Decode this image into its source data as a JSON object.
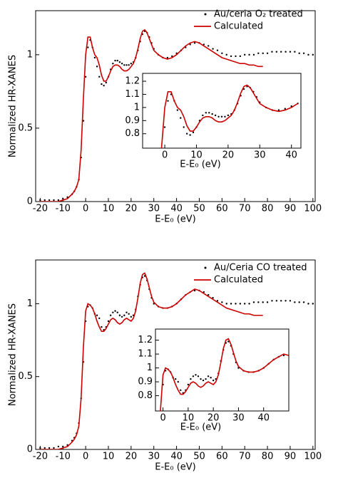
{
  "chart_data": [
    {
      "type": "line",
      "xlabel": "E-E₀ (eV)",
      "ylabel": "Normalized HR-XANES",
      "x": [
        -20,
        -18,
        -16,
        -14,
        -12,
        -10,
        -8,
        -6,
        -5,
        -4,
        -3,
        -2,
        -1,
        0,
        1,
        2,
        3,
        4,
        5,
        6,
        7,
        8,
        9,
        10,
        11,
        12,
        13,
        14,
        15,
        16,
        17,
        18,
        19,
        20,
        21,
        22,
        23,
        24,
        25,
        26,
        27,
        28,
        29,
        30,
        32,
        34,
        36,
        38,
        40,
        42,
        44,
        46,
        48,
        50,
        52,
        54,
        56,
        58,
        60,
        62,
        64,
        66,
        68,
        70,
        72,
        74,
        76,
        78,
        80,
        82,
        84,
        86,
        88,
        90,
        92,
        94,
        96,
        98,
        100
      ],
      "series": [
        {
          "name": "Au/ceria O₂ treated",
          "color": "#000000",
          "marker": "dot",
          "values": [
            0.01,
            0.01,
            0.01,
            0.01,
            0.01,
            0.02,
            0.03,
            0.05,
            0.07,
            0.1,
            0.15,
            0.3,
            0.55,
            0.85,
            1.05,
            1.1,
            1.05,
            0.98,
            0.92,
            0.85,
            0.8,
            0.79,
            0.81,
            0.85,
            0.9,
            0.94,
            0.96,
            0.96,
            0.95,
            0.94,
            0.93,
            0.93,
            0.93,
            0.94,
            0.95,
            0.98,
            1.03,
            1.09,
            1.14,
            1.16,
            1.15,
            1.12,
            1.08,
            1.04,
            1.0,
            0.98,
            0.98,
            0.99,
            1.01,
            1.03,
            1.05,
            1.07,
            1.08,
            1.08,
            1.07,
            1.06,
            1.04,
            1.03,
            1.01,
            1.0,
            0.99,
            0.99,
            0.99,
            1.0,
            1.0,
            1.0,
            1.01,
            1.01,
            1.01,
            1.02,
            1.02,
            1.02,
            1.02,
            1.02,
            1.02,
            1.01,
            1.01,
            1.0,
            1.0
          ]
        },
        {
          "name": "Calculated",
          "color": "#cc0000",
          "marker": "line",
          "values": [
            0,
            0,
            0,
            0,
            0,
            0.01,
            0.02,
            0.05,
            0.07,
            0.1,
            0.15,
            0.35,
            0.7,
            1.0,
            1.12,
            1.12,
            1.05,
            1.0,
            0.98,
            0.93,
            0.86,
            0.82,
            0.82,
            0.85,
            0.89,
            0.92,
            0.93,
            0.93,
            0.92,
            0.9,
            0.89,
            0.89,
            0.9,
            0.92,
            0.94,
            0.98,
            1.04,
            1.11,
            1.16,
            1.17,
            1.15,
            1.11,
            1.07,
            1.03,
            1.0,
            0.98,
            0.97,
            0.98,
            1.0,
            1.03,
            1.06,
            1.08,
            1.09,
            1.08,
            1.06,
            1.04,
            1.02,
            1.0,
            0.98,
            0.97,
            0.96,
            0.95,
            0.94,
            0.94,
            0.93,
            0.93,
            0.92,
            0.92,
            null,
            null,
            null,
            null,
            null,
            null,
            null,
            null,
            null,
            null,
            null
          ]
        }
      ],
      "xlim": [
        -22,
        101
      ],
      "ylim": [
        0,
        1.3
      ],
      "xticks": [
        -20,
        -10,
        0,
        10,
        20,
        30,
        40,
        50,
        60,
        70,
        80,
        90,
        100
      ],
      "yticks": [
        0,
        0.5,
        1
      ],
      "legend": "upper right",
      "inset": {
        "xlabel": "E-E₀ (eV)",
        "xlim": [
          -7,
          43
        ],
        "ylim": [
          0.69,
          1.26
        ],
        "xticks": [
          0,
          10,
          20,
          30,
          40
        ],
        "yticks": [
          0.8,
          0.9,
          1,
          1.1,
          1.2
        ]
      }
    },
    {
      "type": "line",
      "xlabel": "E-E₀ (eV)",
      "ylabel": "Normalized HR-XANES",
      "x": [
        -20,
        -18,
        -16,
        -14,
        -12,
        -10,
        -8,
        -6,
        -5,
        -4,
        -3,
        -2,
        -1,
        0,
        1,
        2,
        3,
        4,
        5,
        6,
        7,
        8,
        9,
        10,
        11,
        12,
        13,
        14,
        15,
        16,
        17,
        18,
        19,
        20,
        21,
        22,
        23,
        24,
        25,
        26,
        27,
        28,
        29,
        30,
        32,
        34,
        36,
        38,
        40,
        42,
        44,
        46,
        48,
        50,
        52,
        54,
        56,
        58,
        60,
        62,
        64,
        66,
        68,
        70,
        72,
        74,
        76,
        78,
        80,
        82,
        84,
        86,
        88,
        90,
        92,
        94,
        96,
        98,
        100
      ],
      "series": [
        {
          "name": "Au/Ceria CO treated",
          "color": "#000000",
          "marker": "dot",
          "values": [
            0.01,
            0.01,
            0.01,
            0.01,
            0.02,
            0.02,
            0.03,
            0.06,
            0.08,
            0.11,
            0.18,
            0.35,
            0.6,
            0.88,
            0.98,
            0.99,
            0.97,
            0.93,
            0.92,
            0.9,
            0.84,
            0.82,
            0.84,
            0.88,
            0.92,
            0.94,
            0.95,
            0.94,
            0.92,
            0.91,
            0.92,
            0.94,
            0.93,
            0.91,
            0.92,
            0.96,
            1.05,
            1.13,
            1.18,
            1.19,
            1.16,
            1.1,
            1.04,
            1.0,
            0.98,
            0.97,
            0.97,
            0.98,
            1.0,
            1.03,
            1.06,
            1.08,
            1.09,
            1.09,
            1.08,
            1.06,
            1.04,
            1.02,
            1.01,
            1.0,
            1.0,
            1.0,
            1.0,
            1.0,
            1.0,
            1.01,
            1.01,
            1.01,
            1.01,
            1.02,
            1.02,
            1.02,
            1.02,
            1.02,
            1.01,
            1.01,
            1.01,
            1.0,
            1.0
          ]
        },
        {
          "name": "Calculated",
          "color": "#cc0000",
          "marker": "line",
          "values": [
            0,
            0,
            0,
            0,
            0,
            0.01,
            0.02,
            0.05,
            0.07,
            0.1,
            0.16,
            0.35,
            0.7,
            0.95,
            1.0,
            0.99,
            0.97,
            0.93,
            0.88,
            0.84,
            0.81,
            0.81,
            0.83,
            0.86,
            0.89,
            0.9,
            0.89,
            0.87,
            0.86,
            0.87,
            0.89,
            0.9,
            0.89,
            0.88,
            0.9,
            0.95,
            1.04,
            1.14,
            1.2,
            1.21,
            1.17,
            1.11,
            1.05,
            1.01,
            0.98,
            0.97,
            0.97,
            0.98,
            1.0,
            1.03,
            1.06,
            1.08,
            1.1,
            1.09,
            1.07,
            1.05,
            1.03,
            1.01,
            0.99,
            0.97,
            0.96,
            0.95,
            0.94,
            0.93,
            0.93,
            0.92,
            0.92,
            0.92,
            null,
            null,
            null,
            null,
            null,
            null,
            null,
            null,
            null,
            null,
            null
          ]
        }
      ],
      "xlim": [
        -22,
        101
      ],
      "ylim": [
        0,
        1.3
      ],
      "xticks": [
        -20,
        -10,
        0,
        10,
        20,
        30,
        40,
        50,
        60,
        70,
        80,
        90,
        100
      ],
      "yticks": [
        0,
        0.5,
        1
      ],
      "legend": "upper right",
      "inset": {
        "xlabel": "E-E₀ (eV)",
        "xlim": [
          -3,
          50
        ],
        "ylim": [
          0.69,
          1.28
        ],
        "xticks": [
          0,
          10,
          20,
          30,
          40
        ],
        "yticks": [
          0.8,
          0.9,
          1,
          1.1,
          1.2
        ]
      }
    }
  ]
}
